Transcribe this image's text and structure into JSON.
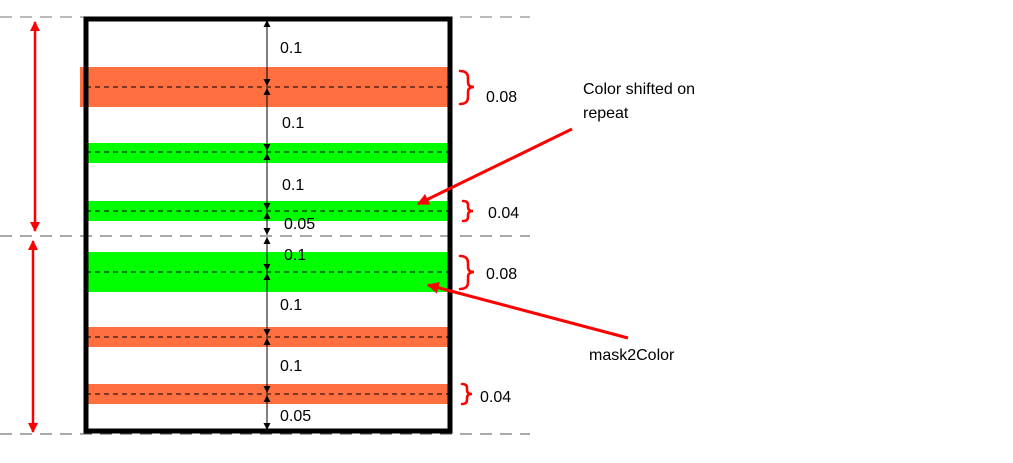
{
  "colors": {
    "orange": "#ff6f3f",
    "green": "#00ff00",
    "red": "#ff0000",
    "frame": "#000000"
  },
  "spacing_labels": {
    "s1": "0.1",
    "s2": "0.1",
    "s3": "0.1",
    "s4": "0.05",
    "s5": "0.1",
    "s6": "0.1",
    "s7": "0.1",
    "s8": "0.05"
  },
  "band_widths": {
    "w1": "0.08",
    "w2": "0.04",
    "w3": "0.08",
    "w4": "0.04"
  },
  "annotations": {
    "color_shift_line1": "Color shifted on",
    "color_shift_line2": "repeat",
    "mask2color": "mask2Color"
  }
}
